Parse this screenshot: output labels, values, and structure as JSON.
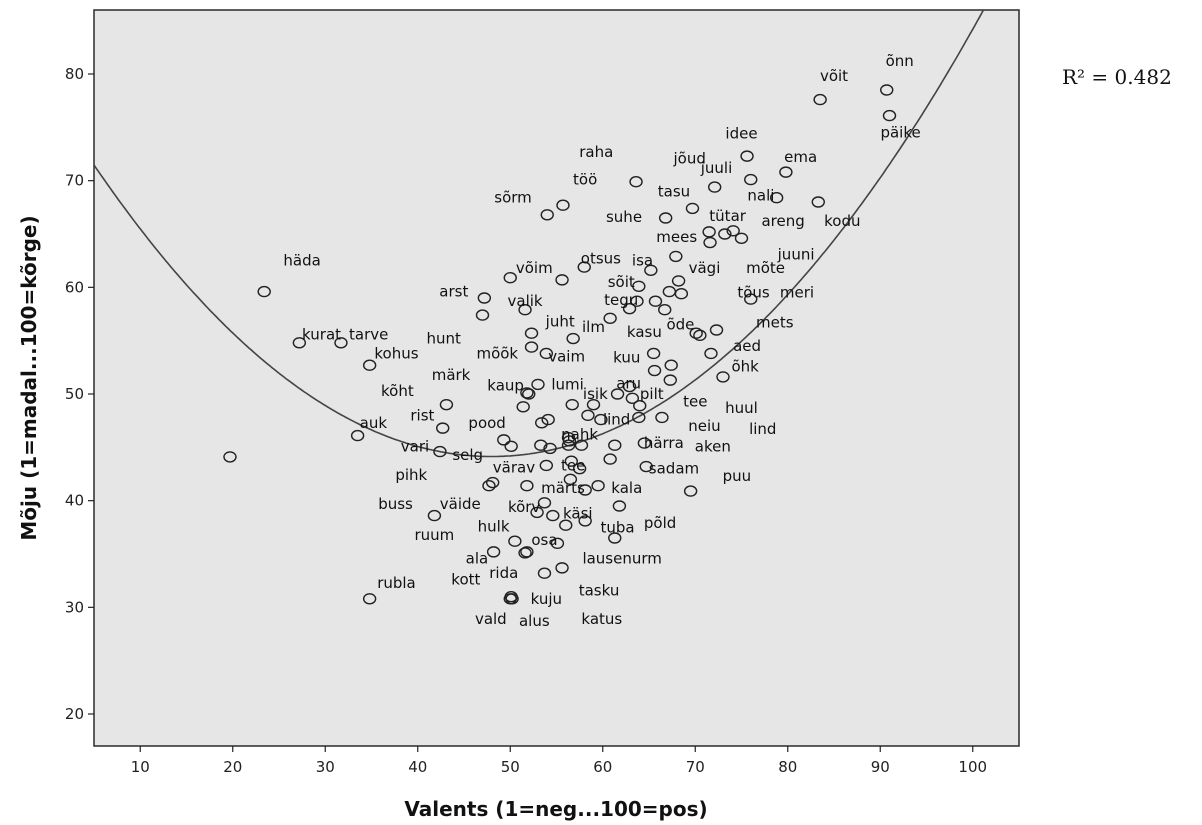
{
  "chart_data": {
    "type": "scatter",
    "xlabel": "Valents (1=neg...100=pos)",
    "ylabel": "Mõju (1=madal...100=kõrge)",
    "xlim": [
      5,
      105
    ],
    "ylim": [
      17,
      86
    ],
    "xticks": [
      10,
      20,
      30,
      40,
      50,
      60,
      70,
      80,
      90,
      100
    ],
    "yticks": [
      20,
      30,
      40,
      50,
      60,
      70,
      80
    ],
    "grid": false,
    "annotation": "R² = 0.482",
    "fit": {
      "type": "quadratic",
      "a": 0.0148,
      "b": -1.42,
      "c": 78.2
    },
    "points": [
      {
        "x": 83.5,
        "y": 77.6
      },
      {
        "x": 90.7,
        "y": 78.5
      },
      {
        "x": 91.0,
        "y": 76.1
      },
      {
        "x": 75.6,
        "y": 72.3
      },
      {
        "x": 79.8,
        "y": 70.8
      },
      {
        "x": 72.1,
        "y": 69.4
      },
      {
        "x": 76.0,
        "y": 70.1
      },
      {
        "x": 63.6,
        "y": 69.9
      },
      {
        "x": 78.8,
        "y": 68.4
      },
      {
        "x": 83.3,
        "y": 68.0
      },
      {
        "x": 55.7,
        "y": 67.7
      },
      {
        "x": 54.0,
        "y": 66.8
      },
      {
        "x": 69.7,
        "y": 67.4
      },
      {
        "x": 66.8,
        "y": 66.5
      },
      {
        "x": 71.5,
        "y": 65.2
      },
      {
        "x": 73.2,
        "y": 65.0
      },
      {
        "x": 74.1,
        "y": 65.3
      },
      {
        "x": 75.0,
        "y": 64.6
      },
      {
        "x": 71.6,
        "y": 64.2
      },
      {
        "x": 67.9,
        "y": 62.9
      },
      {
        "x": 58.0,
        "y": 61.9
      },
      {
        "x": 65.2,
        "y": 61.6
      },
      {
        "x": 23.4,
        "y": 59.6
      },
      {
        "x": 50.0,
        "y": 60.9
      },
      {
        "x": 55.6,
        "y": 60.7
      },
      {
        "x": 68.2,
        "y": 60.6
      },
      {
        "x": 63.9,
        "y": 60.1
      },
      {
        "x": 67.2,
        "y": 59.6
      },
      {
        "x": 68.5,
        "y": 59.4
      },
      {
        "x": 47.2,
        "y": 59.0
      },
      {
        "x": 63.7,
        "y": 58.7
      },
      {
        "x": 65.7,
        "y": 58.7
      },
      {
        "x": 76.0,
        "y": 58.9
      },
      {
        "x": 51.6,
        "y": 57.9
      },
      {
        "x": 62.9,
        "y": 58.0
      },
      {
        "x": 66.7,
        "y": 57.9
      },
      {
        "x": 47.0,
        "y": 57.4
      },
      {
        "x": 60.8,
        "y": 57.1
      },
      {
        "x": 72.3,
        "y": 56.0
      },
      {
        "x": 70.1,
        "y": 55.7
      },
      {
        "x": 70.5,
        "y": 55.5
      },
      {
        "x": 52.3,
        "y": 55.7
      },
      {
        "x": 56.8,
        "y": 55.2
      },
      {
        "x": 27.2,
        "y": 54.8
      },
      {
        "x": 31.7,
        "y": 54.8
      },
      {
        "x": 52.3,
        "y": 54.4
      },
      {
        "x": 65.5,
        "y": 53.8
      },
      {
        "x": 71.7,
        "y": 53.8
      },
      {
        "x": 53.9,
        "y": 53.8
      },
      {
        "x": 34.8,
        "y": 52.7
      },
      {
        "x": 67.4,
        "y": 52.7
      },
      {
        "x": 65.6,
        "y": 52.2
      },
      {
        "x": 73.0,
        "y": 51.6
      },
      {
        "x": 67.3,
        "y": 51.3
      },
      {
        "x": 53.0,
        "y": 50.9
      },
      {
        "x": 62.9,
        "y": 50.7
      },
      {
        "x": 52.0,
        "y": 50.0
      },
      {
        "x": 51.8,
        "y": 50.1
      },
      {
        "x": 61.6,
        "y": 50.0
      },
      {
        "x": 63.2,
        "y": 49.6
      },
      {
        "x": 43.1,
        "y": 49.0
      },
      {
        "x": 56.7,
        "y": 49.0
      },
      {
        "x": 59.0,
        "y": 49.0
      },
      {
        "x": 64.0,
        "y": 48.9
      },
      {
        "x": 51.4,
        "y": 48.8
      },
      {
        "x": 58.4,
        "y": 48.0
      },
      {
        "x": 63.9,
        "y": 47.8
      },
      {
        "x": 59.8,
        "y": 47.6
      },
      {
        "x": 66.4,
        "y": 47.8
      },
      {
        "x": 42.7,
        "y": 46.8
      },
      {
        "x": 54.1,
        "y": 47.6
      },
      {
        "x": 53.4,
        "y": 47.3
      },
      {
        "x": 33.5,
        "y": 46.1
      },
      {
        "x": 56.3,
        "y": 45.9
      },
      {
        "x": 56.4,
        "y": 45.6
      },
      {
        "x": 49.3,
        "y": 45.7
      },
      {
        "x": 56.3,
        "y": 45.2
      },
      {
        "x": 57.7,
        "y": 45.2
      },
      {
        "x": 53.3,
        "y": 45.2
      },
      {
        "x": 61.3,
        "y": 45.2
      },
      {
        "x": 64.5,
        "y": 45.4
      },
      {
        "x": 50.1,
        "y": 45.1
      },
      {
        "x": 54.3,
        "y": 44.9
      },
      {
        "x": 42.4,
        "y": 44.6
      },
      {
        "x": 19.7,
        "y": 44.1
      },
      {
        "x": 60.8,
        "y": 43.9
      },
      {
        "x": 56.6,
        "y": 43.7
      },
      {
        "x": 53.9,
        "y": 43.3
      },
      {
        "x": 57.5,
        "y": 43.0
      },
      {
        "x": 64.7,
        "y": 43.2
      },
      {
        "x": 56.5,
        "y": 42.0
      },
      {
        "x": 48.1,
        "y": 41.7
      },
      {
        "x": 47.7,
        "y": 41.4
      },
      {
        "x": 51.8,
        "y": 41.4
      },
      {
        "x": 59.5,
        "y": 41.4
      },
      {
        "x": 58.1,
        "y": 41.0
      },
      {
        "x": 69.5,
        "y": 40.9
      },
      {
        "x": 53.7,
        "y": 39.8
      },
      {
        "x": 61.8,
        "y": 39.5
      },
      {
        "x": 41.8,
        "y": 38.6
      },
      {
        "x": 52.9,
        "y": 38.9
      },
      {
        "x": 54.6,
        "y": 38.6
      },
      {
        "x": 56.0,
        "y": 37.7
      },
      {
        "x": 58.1,
        "y": 38.1
      },
      {
        "x": 50.5,
        "y": 36.2
      },
      {
        "x": 61.3,
        "y": 36.5
      },
      {
        "x": 55.1,
        "y": 36.0
      },
      {
        "x": 48.2,
        "y": 35.2
      },
      {
        "x": 51.6,
        "y": 35.1
      },
      {
        "x": 51.8,
        "y": 35.2
      },
      {
        "x": 55.6,
        "y": 33.7
      },
      {
        "x": 53.7,
        "y": 33.2
      },
      {
        "x": 34.8,
        "y": 30.8
      },
      {
        "x": 50.0,
        "y": 30.8
      },
      {
        "x": 50.1,
        "y": 31.0
      },
      {
        "x": 50.2,
        "y": 30.8
      }
    ],
    "labels": [
      {
        "text": "õnn",
        "x": 92.1,
        "y": 81.2
      },
      {
        "text": "võit",
        "x": 85.0,
        "y": 79.8
      },
      {
        "text": "päike",
        "x": 92.2,
        "y": 74.5
      },
      {
        "text": "idee",
        "x": 75.0,
        "y": 74.4
      },
      {
        "text": "raha",
        "x": 59.3,
        "y": 72.7
      },
      {
        "text": "jõud",
        "x": 69.4,
        "y": 72.1
      },
      {
        "text": "ema",
        "x": 81.4,
        "y": 72.2
      },
      {
        "text": "juuli",
        "x": 72.3,
        "y": 71.2
      },
      {
        "text": "töö",
        "x": 58.1,
        "y": 70.1
      },
      {
        "text": "tasu",
        "x": 67.7,
        "y": 69.0
      },
      {
        "text": "nali",
        "x": 77.1,
        "y": 68.6
      },
      {
        "text": "sõrm",
        "x": 50.3,
        "y": 68.4
      },
      {
        "text": "suhe",
        "x": 62.3,
        "y": 66.6
      },
      {
        "text": "tütar",
        "x": 73.5,
        "y": 66.7
      },
      {
        "text": "areng",
        "x": 79.5,
        "y": 66.2
      },
      {
        "text": "kodu",
        "x": 85.9,
        "y": 66.2
      },
      {
        "text": "mees",
        "x": 68.0,
        "y": 64.7
      },
      {
        "text": "juuni",
        "x": 80.9,
        "y": 63.1
      },
      {
        "text": "võim",
        "x": 52.6,
        "y": 61.8
      },
      {
        "text": "otsus",
        "x": 59.8,
        "y": 62.7
      },
      {
        "text": "isa",
        "x": 64.3,
        "y": 62.5
      },
      {
        "text": "vägi",
        "x": 71.0,
        "y": 61.8
      },
      {
        "text": "mõte",
        "x": 77.6,
        "y": 61.8
      },
      {
        "text": "sõit",
        "x": 62.0,
        "y": 60.5
      },
      {
        "text": "häda",
        "x": 27.5,
        "y": 62.5
      },
      {
        "text": "arst",
        "x": 43.9,
        "y": 59.6
      },
      {
        "text": "meri",
        "x": 81.0,
        "y": 59.5
      },
      {
        "text": "tõus",
        "x": 76.3,
        "y": 59.5
      },
      {
        "text": "valik",
        "x": 51.6,
        "y": 58.7
      },
      {
        "text": "tegu",
        "x": 62.0,
        "y": 58.8
      },
      {
        "text": "mets",
        "x": 78.6,
        "y": 56.7
      },
      {
        "text": "juht",
        "x": 55.4,
        "y": 56.8
      },
      {
        "text": "ilm",
        "x": 59.0,
        "y": 56.3
      },
      {
        "text": "õde",
        "x": 68.4,
        "y": 56.5
      },
      {
        "text": "kasu",
        "x": 64.5,
        "y": 55.8
      },
      {
        "text": "kurat",
        "x": 29.6,
        "y": 55.6
      },
      {
        "text": "tarve",
        "x": 34.7,
        "y": 55.6
      },
      {
        "text": "hunt",
        "x": 42.8,
        "y": 55.2
      },
      {
        "text": "aed",
        "x": 75.6,
        "y": 54.5
      },
      {
        "text": "kohus",
        "x": 37.7,
        "y": 53.8
      },
      {
        "text": "mõõk",
        "x": 48.6,
        "y": 53.8
      },
      {
        "text": "vaim",
        "x": 56.1,
        "y": 53.5
      },
      {
        "text": "kuu",
        "x": 62.6,
        "y": 53.4
      },
      {
        "text": "õhk",
        "x": 75.4,
        "y": 52.6
      },
      {
        "text": "märk",
        "x": 43.6,
        "y": 51.8
      },
      {
        "text": "kaup",
        "x": 49.5,
        "y": 50.8
      },
      {
        "text": "lumi",
        "x": 56.2,
        "y": 50.9
      },
      {
        "text": "aru",
        "x": 62.8,
        "y": 51.0
      },
      {
        "text": "isik",
        "x": 59.2,
        "y": 50.0
      },
      {
        "text": "pilt",
        "x": 65.3,
        "y": 50.0
      },
      {
        "text": "kõht",
        "x": 37.8,
        "y": 50.3
      },
      {
        "text": "tee",
        "x": 70.0,
        "y": 49.3
      },
      {
        "text": "huul",
        "x": 75.0,
        "y": 48.7
      },
      {
        "text": "rist",
        "x": 40.5,
        "y": 48.0
      },
      {
        "text": "pood",
        "x": 47.5,
        "y": 47.3
      },
      {
        "text": "auk",
        "x": 35.2,
        "y": 47.3
      },
      {
        "text": "lind",
        "x": 61.5,
        "y": 47.6
      },
      {
        "text": "neiu",
        "x": 71.0,
        "y": 47.0
      },
      {
        "text": "lind",
        "x": 77.3,
        "y": 46.7
      },
      {
        "text": "nahk",
        "x": 57.5,
        "y": 46.2
      },
      {
        "text": "vari",
        "x": 39.7,
        "y": 45.1
      },
      {
        "text": "härra",
        "x": 66.6,
        "y": 45.4
      },
      {
        "text": "aken",
        "x": 71.9,
        "y": 45.1
      },
      {
        "text": "selg",
        "x": 45.4,
        "y": 44.3
      },
      {
        "text": "värav",
        "x": 50.4,
        "y": 43.1
      },
      {
        "text": "tee",
        "x": 56.8,
        "y": 43.3
      },
      {
        "text": "sadam",
        "x": 67.7,
        "y": 43.0
      },
      {
        "text": "pihk",
        "x": 39.3,
        "y": 42.4
      },
      {
        "text": "puu",
        "x": 74.5,
        "y": 42.3
      },
      {
        "text": "märts",
        "x": 55.7,
        "y": 41.2
      },
      {
        "text": "kala",
        "x": 62.6,
        "y": 41.2
      },
      {
        "text": "buss",
        "x": 37.6,
        "y": 39.7
      },
      {
        "text": "väide",
        "x": 44.6,
        "y": 39.7
      },
      {
        "text": "kõrv",
        "x": 51.5,
        "y": 39.4
      },
      {
        "text": "käsi",
        "x": 57.3,
        "y": 38.8
      },
      {
        "text": "põld",
        "x": 66.2,
        "y": 37.9
      },
      {
        "text": "tuba",
        "x": 61.6,
        "y": 37.5
      },
      {
        "text": "hulk",
        "x": 48.2,
        "y": 37.6
      },
      {
        "text": "ruum",
        "x": 41.8,
        "y": 36.8
      },
      {
        "text": "osa",
        "x": 53.7,
        "y": 36.3
      },
      {
        "text": "ala",
        "x": 46.4,
        "y": 34.6
      },
      {
        "text": "lausenurm",
        "x": 62.1,
        "y": 34.6
      },
      {
        "text": "rida",
        "x": 49.3,
        "y": 33.2
      },
      {
        "text": "kott",
        "x": 45.2,
        "y": 32.6
      },
      {
        "text": "rubla",
        "x": 37.7,
        "y": 32.3
      },
      {
        "text": "tasku",
        "x": 59.6,
        "y": 31.6
      },
      {
        "text": "kuju",
        "x": 53.9,
        "y": 30.8
      },
      {
        "text": "vald",
        "x": 47.9,
        "y": 28.9
      },
      {
        "text": "alus",
        "x": 52.6,
        "y": 28.7
      },
      {
        "text": "katus",
        "x": 59.9,
        "y": 28.9
      }
    ]
  }
}
